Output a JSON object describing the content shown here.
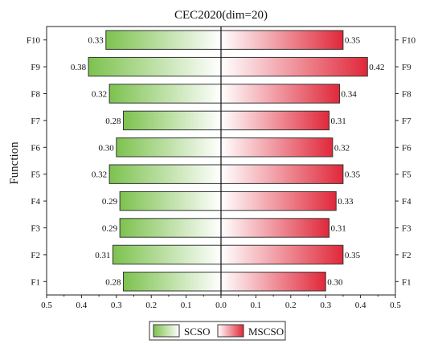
{
  "chart_data": {
    "type": "bar",
    "orientation": "horizontal",
    "layout": "diverging",
    "title": "CEC2020(dim=20)",
    "ylabel": "Function",
    "xlabel": "",
    "categories": [
      "F1",
      "F2",
      "F3",
      "F4",
      "F5",
      "F6",
      "F7",
      "F8",
      "F9",
      "F10"
    ],
    "series": [
      {
        "name": "SCSO",
        "direction": "left",
        "color": "#7dc24f",
        "values": [
          0.28,
          0.31,
          0.29,
          0.29,
          0.32,
          0.3,
          0.28,
          0.32,
          0.38,
          0.33
        ],
        "labels": [
          "0.28",
          "0.31",
          "0.29",
          "0.29",
          "0.32",
          "0.30",
          "0.28",
          "0.32",
          "0.38",
          "0.33"
        ]
      },
      {
        "name": "MSCSO",
        "direction": "right",
        "color": "#e0283a",
        "values": [
          0.3,
          0.35,
          0.31,
          0.33,
          0.35,
          0.32,
          0.31,
          0.34,
          0.42,
          0.35
        ],
        "labels": [
          "0.30",
          "0.35",
          "0.31",
          "0.33",
          "0.35",
          "0.32",
          "0.31",
          "0.34",
          "0.42",
          "0.35"
        ]
      }
    ],
    "xlim": [
      -0.5,
      0.5
    ],
    "xtick_values": [
      -0.5,
      -0.4,
      -0.3,
      -0.2,
      -0.1,
      0,
      0.1,
      0.2,
      0.3,
      0.4,
      0.5
    ],
    "xtick_labels": [
      "0.5",
      "0.4",
      "0.3",
      "0.2",
      "0.1",
      "0.0",
      "0.1",
      "0.2",
      "0.3",
      "0.4",
      "0.5"
    ],
    "grid": false,
    "legend_position": "bottom"
  }
}
